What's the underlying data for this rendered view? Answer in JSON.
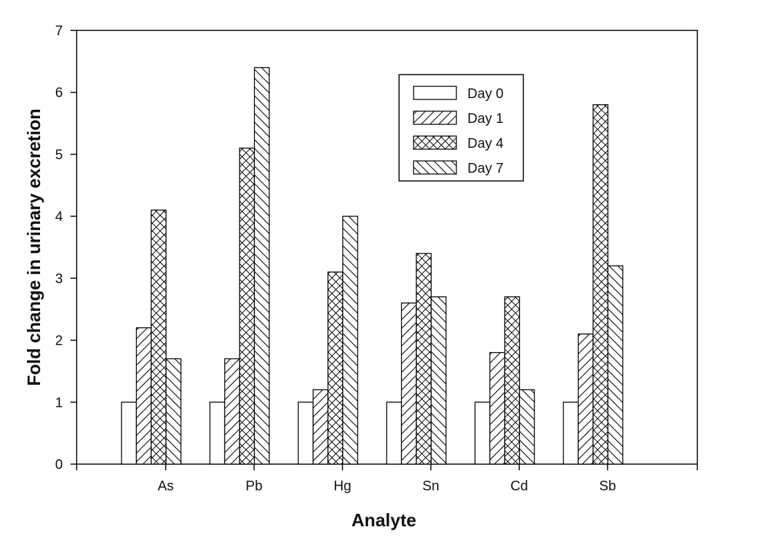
{
  "chart_data": {
    "type": "bar",
    "title": "",
    "xlabel": "Analyte",
    "ylabel": "Fold change in urinary excretion",
    "categories": [
      "As",
      "Pb",
      "Hg",
      "Sn",
      "Cd",
      "Sb"
    ],
    "series": [
      {
        "name": "Day 0",
        "pattern": "none",
        "values": [
          1.0,
          1.0,
          1.0,
          1.0,
          1.0,
          1.0
        ]
      },
      {
        "name": "Day 1",
        "pattern": "forward-diagonal",
        "values": [
          2.2,
          1.7,
          1.2,
          2.6,
          1.8,
          2.1
        ]
      },
      {
        "name": "Day 4",
        "pattern": "crosshatch",
        "values": [
          4.1,
          5.1,
          3.1,
          3.4,
          2.7,
          5.8
        ]
      },
      {
        "name": "Day 7",
        "pattern": "back-diagonal",
        "values": [
          1.7,
          6.4,
          4.0,
          2.7,
          1.2,
          3.2
        ]
      }
    ],
    "ylim": [
      0,
      7
    ],
    "yticks": [
      "0",
      "1",
      "2",
      "3",
      "4",
      "5",
      "6",
      "7"
    ],
    "grid": false,
    "legend_position": "top-right",
    "colors": {
      "fill": "#ffffff",
      "stroke": "#000000"
    }
  }
}
